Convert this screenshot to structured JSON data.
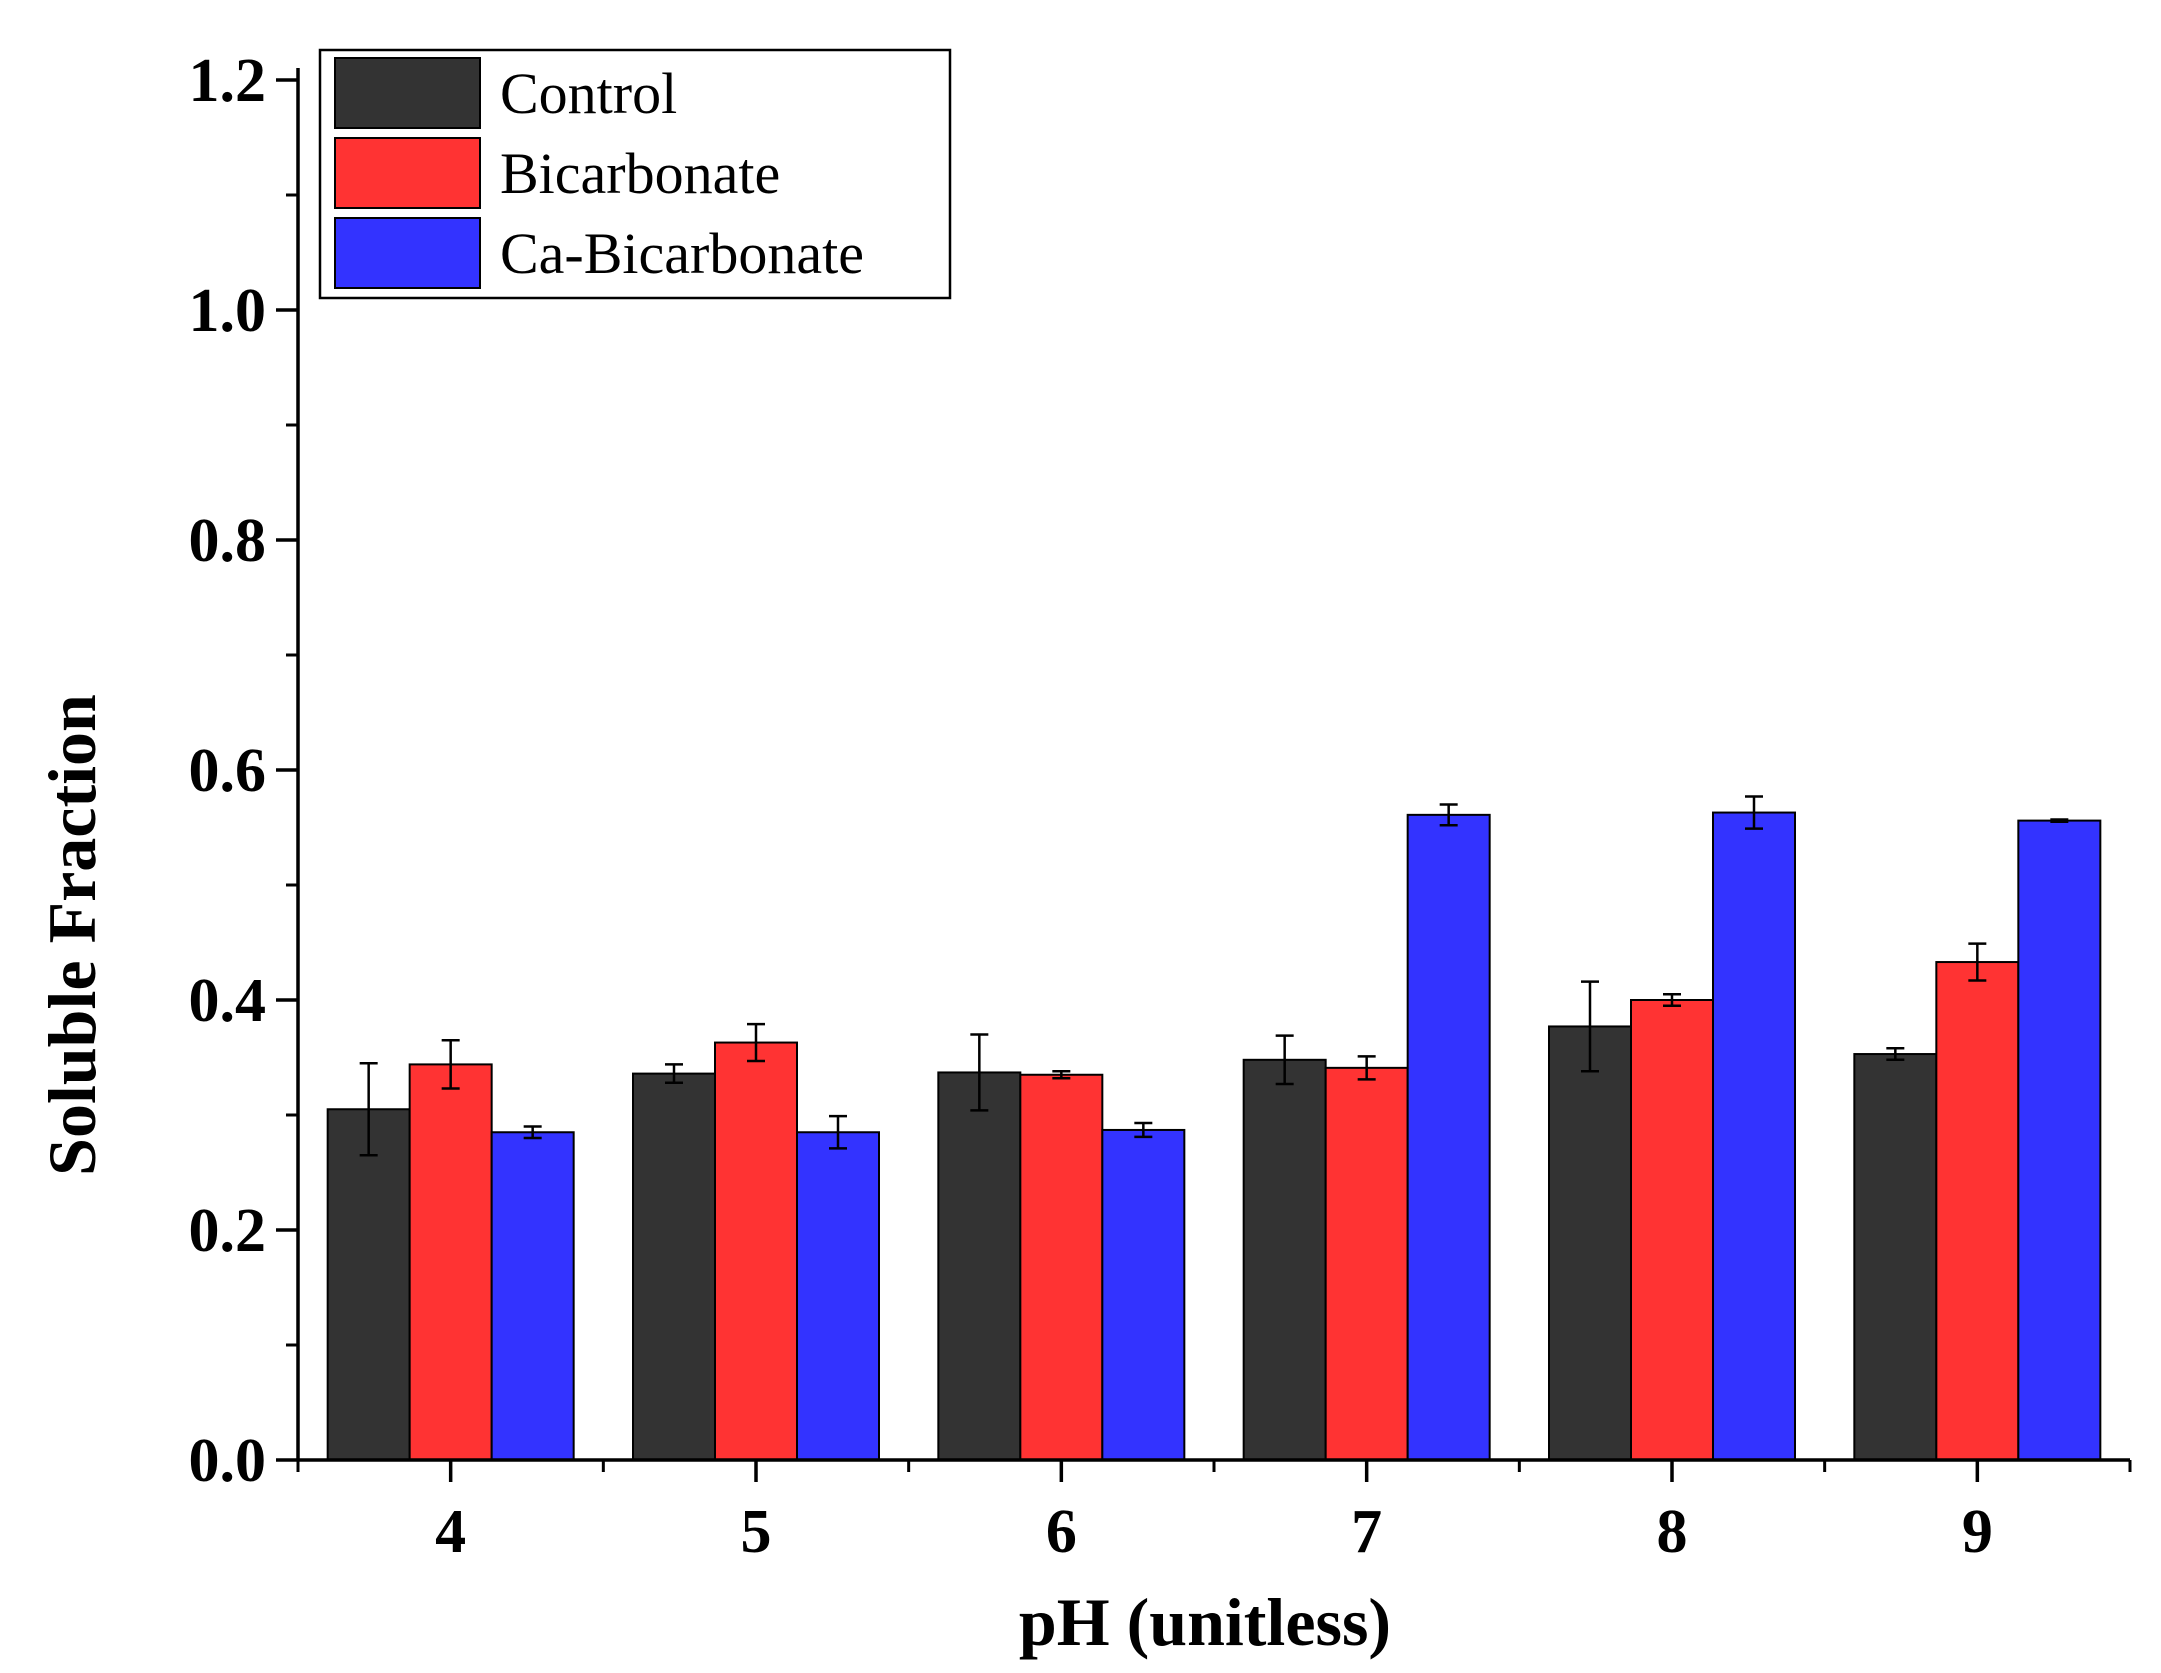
{
  "chart_data": {
    "type": "bar",
    "title": "",
    "xlabel": "pH (unitless)",
    "ylabel": "Soluble Fraction",
    "categories": [
      "4",
      "5",
      "6",
      "7",
      "8",
      "9"
    ],
    "ylim": [
      0,
      1.2
    ],
    "yticks": [
      "0.0",
      "0.2",
      "0.4",
      "0.6",
      "0.8",
      "1.0",
      "1.2"
    ],
    "legend_position": "top-left",
    "grid": false,
    "error_bars": true,
    "series": [
      {
        "name": "Control",
        "color": "#333333",
        "values": [
          0.305,
          0.336,
          0.337,
          0.348,
          0.377,
          0.353
        ],
        "errors": [
          0.04,
          0.008,
          0.033,
          0.021,
          0.039,
          0.005
        ]
      },
      {
        "name": "Bicarbonate",
        "color": "#ff3333",
        "values": [
          0.344,
          0.363,
          0.335,
          0.341,
          0.4,
          0.433
        ],
        "errors": [
          0.021,
          0.016,
          0.003,
          0.01,
          0.005,
          0.016
        ]
      },
      {
        "name": "Ca-Bicarbonate",
        "color": "#3333ff",
        "values": [
          0.285,
          0.285,
          0.287,
          0.561,
          0.563,
          0.556
        ],
        "errors": [
          0.005,
          0.014,
          0.006,
          0.009,
          0.014,
          0.001
        ]
      }
    ]
  }
}
